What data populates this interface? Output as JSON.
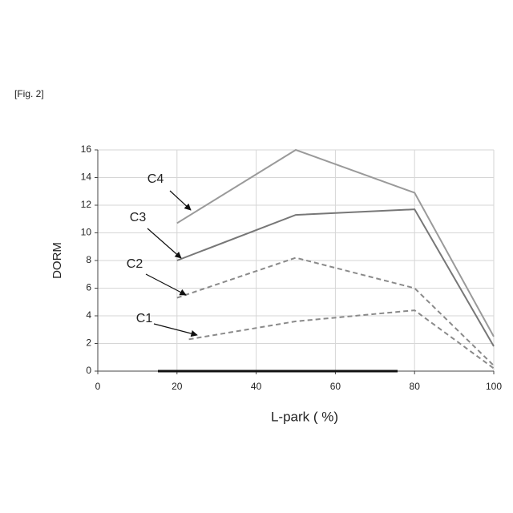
{
  "figure_label": "[Fig. 2]",
  "chart_data": {
    "type": "line",
    "x_label": "L-park ( %)",
    "y_label": "DORM",
    "xlim": [
      0,
      100
    ],
    "xticks": [
      0,
      20,
      40,
      60,
      80,
      100
    ],
    "ylim": [
      0,
      16
    ],
    "yticks": [
      0,
      2,
      4,
      6,
      8,
      10,
      12,
      14,
      16
    ],
    "grid": true,
    "series": [
      {
        "name": "C1",
        "color": "#8a8a8a",
        "dashed": true,
        "x": [
          23,
          50,
          80,
          100
        ],
        "values": [
          2.3,
          3.6,
          4.4,
          0.2
        ]
      },
      {
        "name": "C2",
        "color": "#8a8a8a",
        "dashed": true,
        "x": [
          20,
          50,
          80,
          100
        ],
        "values": [
          5.3,
          8.2,
          6.0,
          0.4
        ]
      },
      {
        "name": "C3",
        "color": "#777777",
        "dashed": false,
        "x": [
          20,
          50,
          80,
          100
        ],
        "values": [
          8.0,
          11.3,
          11.7,
          1.8
        ]
      },
      {
        "name": "C4",
        "color": "#9a9a9a",
        "dashed": false,
        "x": [
          20,
          50,
          80,
          100
        ],
        "values": [
          10.7,
          16.0,
          12.9,
          2.5
        ]
      }
    ]
  }
}
